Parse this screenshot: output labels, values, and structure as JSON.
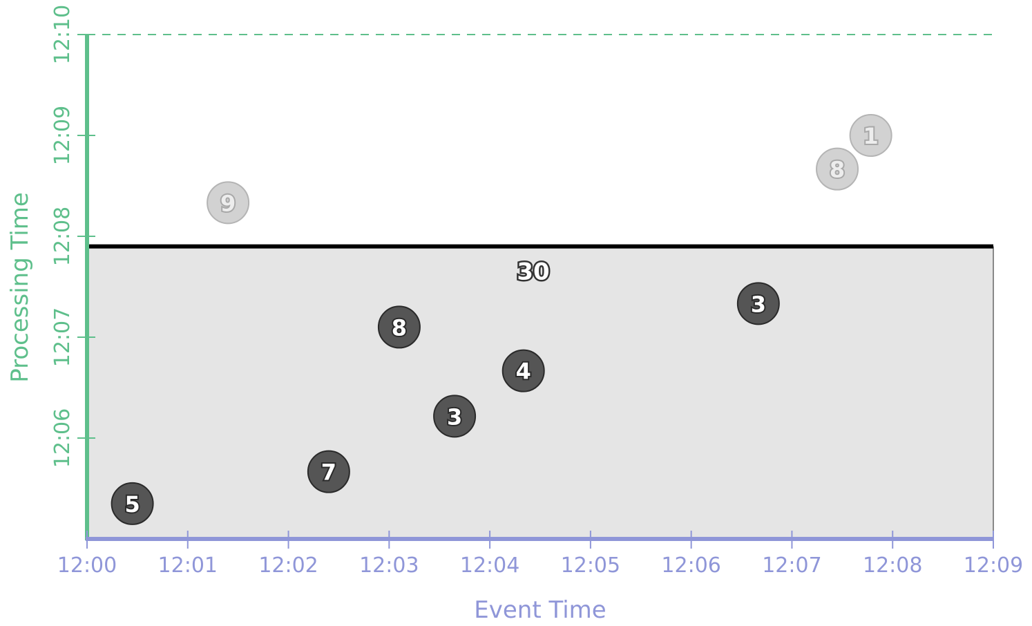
{
  "chart_data": {
    "type": "scatter",
    "xlabel": "Event Time",
    "ylabel": "Processing Time",
    "x_ticks": [
      "12:00",
      "12:01",
      "12:02",
      "12:03",
      "12:04",
      "12:05",
      "12:06",
      "12:07",
      "12:08",
      "12:09"
    ],
    "y_ticks": [
      "12:06",
      "12:07",
      "12:08",
      "12:09",
      "12:10"
    ],
    "xlim": [
      "12:00",
      "12:09"
    ],
    "ylim": [
      "12:05",
      "12:10"
    ],
    "window": {
      "x_start": "12:00",
      "x_end": "12:09",
      "processing_time_cutoff": "12:07:54",
      "sum": "30"
    },
    "points": [
      {
        "event_time": "12:00:27",
        "processing_time": "12:05:21",
        "value": "5",
        "included": true
      },
      {
        "event_time": "12:02:24",
        "processing_time": "12:05:40",
        "value": "7",
        "included": true
      },
      {
        "event_time": "12:03:06",
        "processing_time": "12:07:06",
        "value": "8",
        "included": true
      },
      {
        "event_time": "12:03:39",
        "processing_time": "12:06:13",
        "value": "3",
        "included": true
      },
      {
        "event_time": "12:04:20",
        "processing_time": "12:06:40",
        "value": "4",
        "included": true
      },
      {
        "event_time": "12:06:40",
        "processing_time": "12:07:20",
        "value": "3",
        "included": true
      },
      {
        "event_time": "12:01:24",
        "processing_time": "12:08:20",
        "value": "9",
        "included": false
      },
      {
        "event_time": "12:07:27",
        "processing_time": "12:08:40",
        "value": "8",
        "included": false
      },
      {
        "event_time": "12:07:47",
        "processing_time": "12:09:00",
        "value": "1",
        "included": false
      }
    ],
    "colors": {
      "x_axis": "#8f96d8",
      "y_axis": "#5ebf8b",
      "window_fill": "#e5e5e5",
      "included_point": "#555555",
      "excluded_point": "#d2d2d2"
    }
  }
}
